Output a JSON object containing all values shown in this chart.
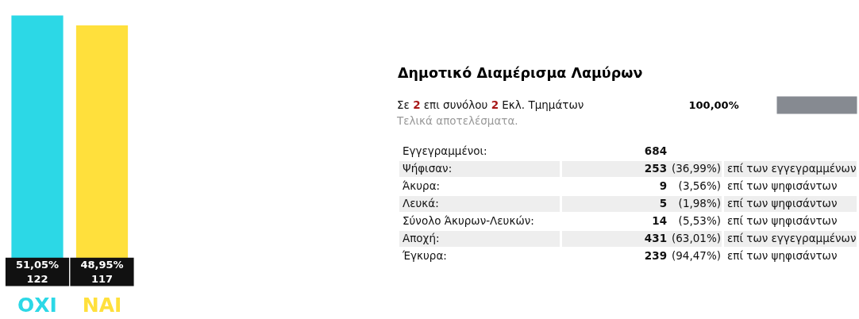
{
  "chart_data": [
    {
      "type": "bar",
      "categories": [
        "ΟΧΙ",
        "ΝΑΙ"
      ],
      "values": [
        51.05,
        48.95
      ],
      "colors": [
        "#2cd8e6",
        "#ffe03c"
      ],
      "value_labels": [
        "51,05%\n122",
        "48,95%\n117"
      ],
      "tick_labels": "x"
    },
    {
      "type": "other",
      "title": "Δημοτικό Διαμέρισμα Λαμύρων",
      "values": [
        100
      ],
      "value_labels": [
        "100,00%"
      ],
      "colors": [
        "#868a91"
      ],
      "annotations": [
        "Σε 2 επι συνόλου 2 Εκλ. Τμημάτων",
        "Τελικά αποτελέσματα.",
        "Εγγεγραμμένοι:\t684",
        "Ψήφισαν:\t253\t(36,99%)\tεπί των εγγεγραμμένων",
        "Άκυρα:\t9\t(3,56%)\tεπί των ψηφισάντων",
        "Λευκά:\t5\t(1,98%)\tεπί των ψηφισάντων",
        "Σύνολο Άκυρων-Λευκών:\t14\t(5,53%)\tεπί των ψηφισάντων",
        "Αποχή:\t431\t(63,01%)\tεπί των εγγεγραμμένων",
        "Έγκυρα:\t239\t(94,47%)\tεπί των ψηφισάντων"
      ]
    }
  ]
}
